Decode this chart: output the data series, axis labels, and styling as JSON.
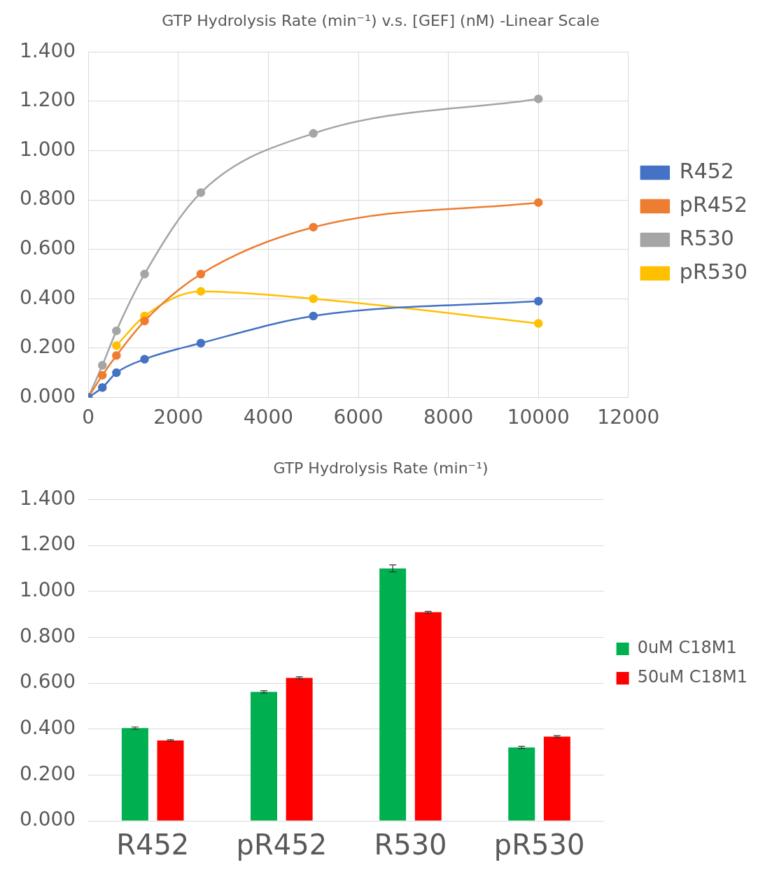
{
  "chart_data": [
    {
      "type": "line",
      "title": "GTP Hydrolysis Rate (min⁻¹) v.s. [GEF] (nM) -Linear Scale",
      "x": [
        0,
        312.5,
        625,
        1250,
        2500,
        5000,
        10000
      ],
      "series": [
        {
          "name": "R452",
          "color": "#4472c4",
          "values": [
            0,
            0.04,
            0.1,
            0.155,
            0.22,
            0.33,
            0.39
          ]
        },
        {
          "name": "pR452",
          "color": "#ed7d31",
          "values": [
            0,
            0.09,
            0.17,
            0.31,
            0.5,
            0.69,
            0.79
          ]
        },
        {
          "name": "R530",
          "color": "#a5a5a5",
          "values": [
            0,
            0.13,
            0.27,
            0.5,
            0.83,
            1.07,
            1.21
          ]
        },
        {
          "name": "pR530",
          "color": "#ffc000",
          "values": [
            0,
            null,
            0.21,
            0.33,
            0.43,
            0.4,
            0.3
          ]
        }
      ],
      "xlim": [
        0,
        12000
      ],
      "xticks": [
        0,
        2000,
        4000,
        6000,
        8000,
        10000,
        12000
      ],
      "ylim": [
        0,
        1.4
      ],
      "yticks": [
        {
          "value": 0,
          "label": "0.000"
        },
        {
          "value": 0.2,
          "label": "0.200"
        },
        {
          "value": 0.4,
          "label": "0.400"
        },
        {
          "value": 0.6,
          "label": "0.600"
        },
        {
          "value": 0.8,
          "label": "0.800"
        },
        {
          "value": 1,
          "label": "1.000"
        },
        {
          "value": 1.2,
          "label": "1.200"
        },
        {
          "value": 1.4,
          "label": "1.400"
        }
      ],
      "grid": true,
      "legend": "right",
      "marker": "circle",
      "line_style": "solid"
    },
    {
      "type": "bar",
      "title": "GTP Hydrolysis Rate (min⁻¹)",
      "categories": [
        "R452",
        "pR452",
        "R530",
        "pR530"
      ],
      "series": [
        {
          "name": "0uM C18M1",
          "color": "#00b050",
          "values": [
            0.404,
            0.562,
            1.1,
            0.32
          ],
          "errors": [
            0.005,
            0.005,
            0.015,
            0.005
          ]
        },
        {
          "name": "50uM C18M1",
          "color": "#ff0000",
          "values": [
            0.35,
            0.623,
            0.909,
            0.367
          ],
          "errors": [
            0.004,
            0.005,
            0.004,
            0.004
          ]
        }
      ],
      "ylim": [
        0,
        1.4
      ],
      "yticks": [
        {
          "value": 0,
          "label": "0.000"
        },
        {
          "value": 0.2,
          "label": "0.200"
        },
        {
          "value": 0.4,
          "label": "0.400"
        },
        {
          "value": 0.6,
          "label": "0.600"
        },
        {
          "value": 0.8,
          "label": "0.800"
        },
        {
          "value": 1,
          "label": "1.000"
        },
        {
          "value": 1.2,
          "label": "1.200"
        },
        {
          "value": 1.4,
          "label": "1.400"
        }
      ],
      "grid": "y",
      "legend": "right"
    }
  ]
}
